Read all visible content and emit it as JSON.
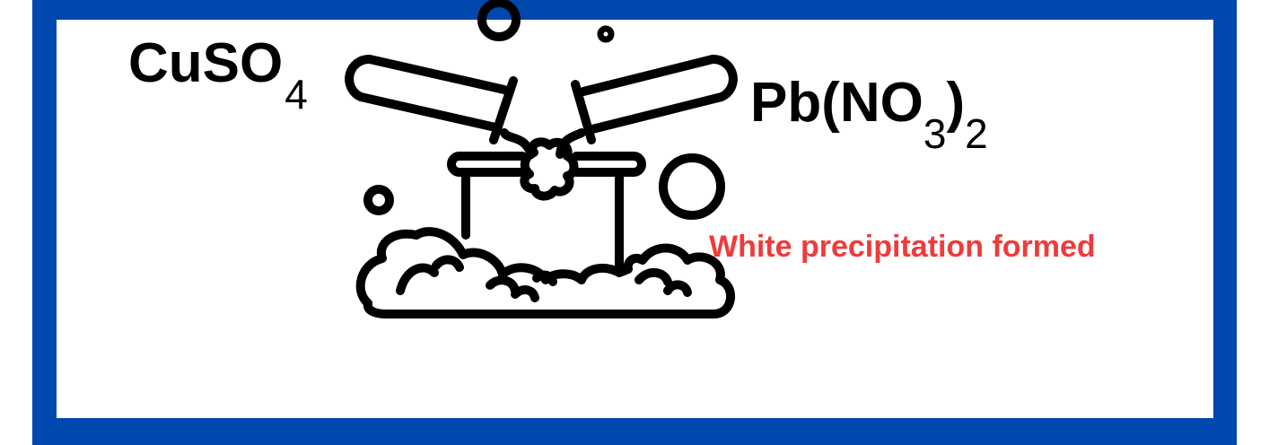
{
  "colors": {
    "frame": "#0048ad",
    "panel": "#ffffff",
    "ink": "#000000",
    "caption": "#ef3b3b"
  },
  "reagent_left": {
    "main": "CuSO",
    "sub": "4"
  },
  "reagent_right": {
    "main": "Pb(NO",
    "sub_inner": "3",
    "close": ")",
    "sub_outer": "2"
  },
  "caption": "White precipitation formed",
  "icons": [
    "test-tube-icon",
    "beaker-icon",
    "bubble-icon",
    "foam-icon"
  ]
}
